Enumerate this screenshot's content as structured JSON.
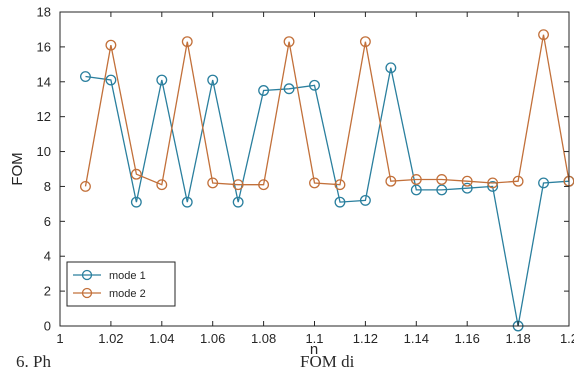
{
  "chart_data": {
    "type": "line",
    "xlabel": "n",
    "ylabel": "FOM",
    "xlim": [
      1.0,
      1.2
    ],
    "ylim": [
      0,
      18
    ],
    "x_ticks": [
      "1",
      "1.02",
      "1.04",
      "1.06",
      "1.08",
      "1.1",
      "1.12",
      "1.14",
      "1.16",
      "1.18",
      "1.2"
    ],
    "y_ticks": [
      "0",
      "2",
      "4",
      "6",
      "8",
      "10",
      "12",
      "14",
      "16",
      "18"
    ],
    "legend_position": "bottom-left",
    "grid": false,
    "x": [
      1.01,
      1.02,
      1.03,
      1.04,
      1.05,
      1.06,
      1.07,
      1.08,
      1.09,
      1.1,
      1.11,
      1.12,
      1.13,
      1.14,
      1.15,
      1.16,
      1.17,
      1.18,
      1.19,
      1.2
    ],
    "series": [
      {
        "name": "mode 1",
        "color": "#2a7f9e",
        "values": [
          14.3,
          14.1,
          7.1,
          14.1,
          7.1,
          14.1,
          7.1,
          13.5,
          13.6,
          13.8,
          7.1,
          7.2,
          14.8,
          7.8,
          7.8,
          7.9,
          8.0,
          0.0,
          8.2,
          8.3
        ]
      },
      {
        "name": "mode 2",
        "color": "#c2703a",
        "values": [
          8.0,
          16.1,
          8.7,
          8.1,
          16.3,
          8.2,
          8.1,
          8.1,
          16.3,
          8.2,
          8.1,
          16.3,
          8.3,
          8.4,
          8.4,
          8.3,
          8.2,
          8.3,
          16.7,
          8.3
        ]
      }
    ]
  },
  "caption": {
    "left": "6. Ph",
    "right": "FOM                    di"
  }
}
